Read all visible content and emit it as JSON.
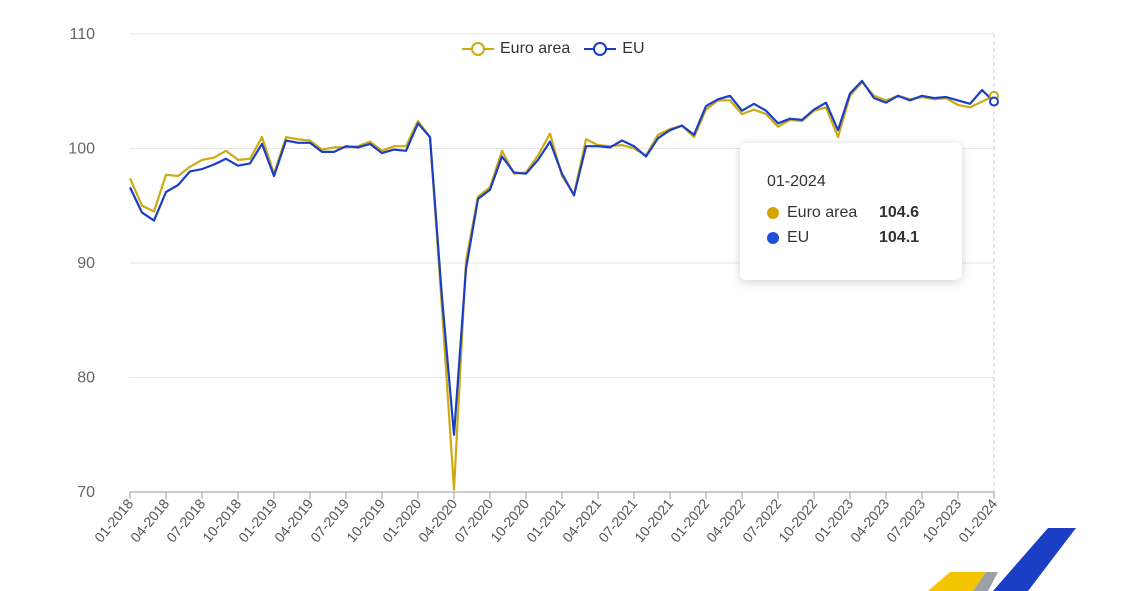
{
  "legend": {
    "series1": "Euro area",
    "series2": "EU"
  },
  "tooltip": {
    "date": "01-2024",
    "rows": [
      {
        "name": "Euro area",
        "value": "104.6",
        "color": "#d4a500"
      },
      {
        "name": "EU",
        "value": "104.1",
        "color": "#1e4fd8"
      }
    ]
  },
  "colors": {
    "euro_area": "#ccaa14",
    "eu": "#1a3fc4",
    "grid": "#e6e6e6",
    "crosshair": "#cccccc"
  },
  "chart_data": {
    "type": "line",
    "title": "",
    "xlabel": "",
    "ylabel": "",
    "ylim": [
      70,
      110
    ],
    "yticks": [
      70,
      80,
      90,
      100,
      110
    ],
    "x_tick_labels": [
      "01-2018",
      "04-2018",
      "07-2018",
      "10-2018",
      "01-2019",
      "04-2019",
      "07-2019",
      "10-2019",
      "01-2020",
      "04-2020",
      "07-2020",
      "10-2020",
      "01-2021",
      "04-2021",
      "07-2021",
      "10-2021",
      "01-2022",
      "04-2022",
      "07-2022",
      "10-2022",
      "01-2023",
      "04-2023",
      "07-2023",
      "10-2023",
      "01-2024"
    ],
    "grid": true,
    "legend_position": "top-center",
    "x": [
      "01-2018",
      "02-2018",
      "03-2018",
      "04-2018",
      "05-2018",
      "06-2018",
      "07-2018",
      "08-2018",
      "09-2018",
      "10-2018",
      "11-2018",
      "12-2018",
      "01-2019",
      "02-2019",
      "03-2019",
      "04-2019",
      "05-2019",
      "06-2019",
      "07-2019",
      "08-2019",
      "09-2019",
      "10-2019",
      "11-2019",
      "12-2019",
      "01-2020",
      "02-2020",
      "03-2020",
      "04-2020",
      "05-2020",
      "06-2020",
      "07-2020",
      "08-2020",
      "09-2020",
      "10-2020",
      "11-2020",
      "12-2020",
      "01-2021",
      "02-2021",
      "03-2021",
      "04-2021",
      "05-2021",
      "06-2021",
      "07-2021",
      "08-2021",
      "09-2021",
      "10-2021",
      "11-2021",
      "12-2021",
      "01-2022",
      "02-2022",
      "03-2022",
      "04-2022",
      "05-2022",
      "06-2022",
      "07-2022",
      "08-2022",
      "09-2022",
      "10-2022",
      "11-2022",
      "12-2022",
      "01-2023",
      "02-2023",
      "03-2023",
      "04-2023",
      "05-2023",
      "06-2023",
      "07-2023",
      "08-2023",
      "09-2023",
      "10-2023",
      "11-2023",
      "12-2023",
      "01-2024"
    ],
    "series": [
      {
        "name": "Euro area",
        "values": [
          97.4,
          95.0,
          94.5,
          97.7,
          97.6,
          98.4,
          99.0,
          99.2,
          99.8,
          99.0,
          99.1,
          101.0,
          97.8,
          101.0,
          100.8,
          100.7,
          99.9,
          100.1,
          100.1,
          100.2,
          100.6,
          99.8,
          100.2,
          100.2,
          102.4,
          101.0,
          86.0,
          70.2,
          90.2,
          95.8,
          96.6,
          99.8,
          97.8,
          97.9,
          99.4,
          101.3,
          97.6,
          96.0,
          100.8,
          100.3,
          100.2,
          100.3,
          100.0,
          99.4,
          101.2,
          101.7,
          102.0,
          101.0,
          103.4,
          104.2,
          104.2,
          103.0,
          103.4,
          103.0,
          101.9,
          102.5,
          102.4,
          103.3,
          103.6,
          101.0,
          104.6,
          105.8,
          104.6,
          104.2,
          104.6,
          104.3,
          104.5,
          104.3,
          104.4,
          103.8,
          103.6,
          104.1,
          104.6
        ]
      },
      {
        "name": "EU",
        "values": [
          96.6,
          94.4,
          93.7,
          96.2,
          96.8,
          98.0,
          98.2,
          98.6,
          99.1,
          98.5,
          98.7,
          100.4,
          97.6,
          100.7,
          100.5,
          100.5,
          99.7,
          99.7,
          100.2,
          100.1,
          100.4,
          99.6,
          99.9,
          99.8,
          102.2,
          101.0,
          87.0,
          75.0,
          89.5,
          95.6,
          96.4,
          99.3,
          97.9,
          97.8,
          99.0,
          100.6,
          97.8,
          95.9,
          100.2,
          100.2,
          100.1,
          100.7,
          100.2,
          99.3,
          100.9,
          101.6,
          102.0,
          101.2,
          103.7,
          104.3,
          104.6,
          103.3,
          103.9,
          103.3,
          102.2,
          102.6,
          102.5,
          103.4,
          104.0,
          101.6,
          104.8,
          105.9,
          104.4,
          104.0,
          104.6,
          104.2,
          104.6,
          104.4,
          104.5,
          104.2,
          103.9,
          105.1,
          104.1
        ]
      }
    ]
  }
}
